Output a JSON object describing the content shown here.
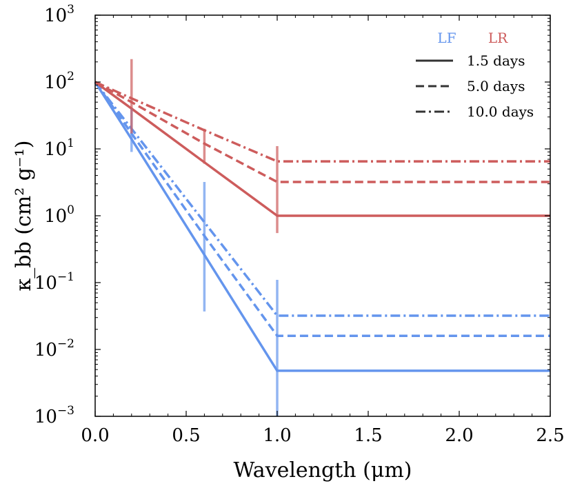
{
  "chart_data": {
    "type": "line",
    "xlabel": "Wavelength (μm)",
    "ylabel": "κ_bb (cm² g⁻¹)",
    "xlim": [
      0.0,
      2.5
    ],
    "ylim": [
      0.001,
      1000
    ],
    "yscale": "log",
    "x_ticks": [
      0.0,
      0.5,
      1.0,
      1.5,
      2.0,
      2.5
    ],
    "x_tick_labels": [
      "0.0",
      "0.5",
      "1.0",
      "1.5",
      "2.0",
      "2.5"
    ],
    "y_ticks": [
      0.001,
      0.01,
      0.1,
      1,
      10,
      100,
      1000
    ],
    "y_tick_base": "10",
    "y_tick_exponents": [
      "−3",
      "−2",
      "−1",
      "0",
      "1",
      "2",
      "3"
    ],
    "legend": {
      "placement": "top-right",
      "groups": [
        {
          "label": "LF",
          "color": "#6495ED"
        },
        {
          "label": "LR",
          "color": "#CD5C5C"
        }
      ],
      "styles": [
        {
          "label": "1.5 days",
          "dash": "solid"
        },
        {
          "label": "5.0 days",
          "dash": "dashed"
        },
        {
          "label": "10.0 days",
          "dash": "dashdot"
        }
      ]
    },
    "series": [
      {
        "name": "LF 1.5 days",
        "group": "LF",
        "style": "solid",
        "color": "#6495ED",
        "x": [
          0.0,
          0.2,
          0.6,
          1.0,
          2.5
        ],
        "y": [
          100,
          14,
          0.26,
          0.0048,
          0.0048
        ]
      },
      {
        "name": "LF 5.0 days",
        "group": "LF",
        "style": "dashed",
        "color": "#6495ED",
        "x": [
          0.0,
          0.2,
          0.6,
          1.0,
          2.5
        ],
        "y": [
          100,
          17,
          0.5,
          0.016,
          0.016
        ]
      },
      {
        "name": "LF 10.0 days",
        "group": "LF",
        "style": "dashdot",
        "color": "#6495ED",
        "x": [
          0.0,
          0.2,
          0.6,
          1.0,
          2.5
        ],
        "y": [
          100,
          20,
          0.8,
          0.032,
          0.032
        ]
      },
      {
        "name": "LR 1.5 days",
        "group": "LR",
        "style": "solid",
        "color": "#CD5C5C",
        "x": [
          0.0,
          0.2,
          0.6,
          1.0,
          2.5
        ],
        "y": [
          100,
          40,
          6.3,
          1.0,
          1.0
        ]
      },
      {
        "name": "LR 5.0 days",
        "group": "LR",
        "style": "dashed",
        "color": "#CD5C5C",
        "x": [
          0.0,
          0.2,
          0.6,
          1.0,
          2.5
        ],
        "y": [
          100,
          50,
          12,
          3.2,
          3.2
        ]
      },
      {
        "name": "LR 10.0 days",
        "group": "LR",
        "style": "dashdot",
        "color": "#CD5C5C",
        "x": [
          0.0,
          0.2,
          0.6,
          1.0,
          2.5
        ],
        "y": [
          100,
          57,
          19,
          6.5,
          6.5
        ]
      }
    ],
    "error_bars": [
      {
        "group": "LF",
        "color": "#6495ED",
        "x": 0.2,
        "y_low": 9,
        "y_high": 40
      },
      {
        "group": "LF",
        "color": "#6495ED",
        "x": 0.6,
        "y_low": 0.037,
        "y_high": 3.2
      },
      {
        "group": "LF",
        "color": "#6495ED",
        "x": 1.0,
        "y_low": 0.001,
        "y_high": 0.11
      },
      {
        "group": "LR",
        "color": "#CD5C5C",
        "x": 0.2,
        "y_low": 17,
        "y_high": 220
      },
      {
        "group": "LR",
        "color": "#CD5C5C",
        "x": 0.6,
        "y_low": 6,
        "y_high": 20
      },
      {
        "group": "LR",
        "color": "#CD5C5C",
        "x": 1.0,
        "y_low": 0.55,
        "y_high": 11
      }
    ]
  }
}
